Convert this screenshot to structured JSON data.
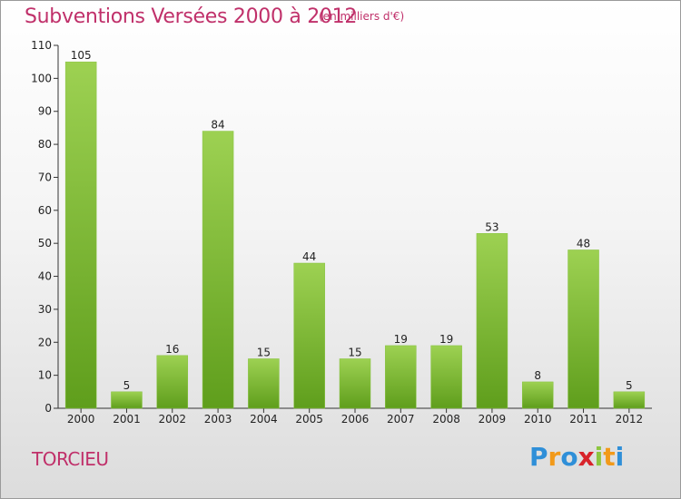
{
  "header": {
    "title": "Subventions Versées 2000 à 2012",
    "subtitle": "(en milliers d'€)"
  },
  "footer": {
    "commune": "TORCIEU",
    "logo": {
      "letters": [
        "P",
        "r",
        "o",
        "x",
        "i",
        "t",
        "i"
      ],
      "colors": [
        "#2f8fd8",
        "#f29a1a",
        "#2f8fd8",
        "#d8232a",
        "#8cc63f",
        "#f29a1a",
        "#2f8fd8"
      ]
    }
  },
  "colors": {
    "accent": "#c0306a",
    "bar_light": "#9dd152",
    "bar_dark": "#5f9e1c"
  },
  "chart_data": {
    "type": "bar",
    "categories": [
      "2000",
      "2001",
      "2002",
      "2003",
      "2004",
      "2005",
      "2006",
      "2007",
      "2008",
      "2009",
      "2010",
      "2011",
      "2012"
    ],
    "values": [
      105,
      5,
      16,
      84,
      15,
      44,
      15,
      19,
      19,
      53,
      8,
      48,
      5
    ],
    "ylim": [
      0,
      110
    ],
    "yticks": [
      0,
      10,
      20,
      30,
      40,
      50,
      60,
      70,
      80,
      90,
      100,
      110
    ],
    "grid": false,
    "legend": "none"
  }
}
